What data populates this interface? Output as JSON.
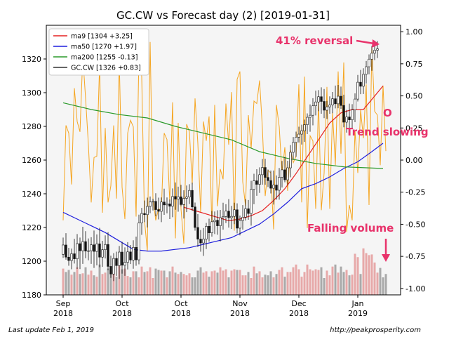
{
  "chart_data": {
    "type": "candlestick",
    "title": "GC.CW vs Forecast day (2)  [2019-01-31]",
    "xlabel": "",
    "ylabel": "",
    "ylim": [
      1180,
      1340
    ],
    "y_ticks": [
      1180,
      1200,
      1220,
      1240,
      1260,
      1280,
      1300,
      1320
    ],
    "y2lim": [
      -1.05,
      1.05
    ],
    "y2_ticks": [
      "1.00",
      "0.75",
      "0.50",
      "0.25",
      "0.00",
      "-0.25",
      "-0.50",
      "-0.75",
      "-1.00"
    ],
    "x_tick_labels": [
      {
        "month": "Sep",
        "year": "2018"
      },
      {
        "month": "Oct",
        "year": "2018"
      },
      {
        "month": "Oct",
        "year": "2018"
      },
      {
        "month": "Nov",
        "year": "2018"
      },
      {
        "month": "Dec",
        "year": "2018"
      },
      {
        "month": "Jan",
        "year": "2019"
      }
    ],
    "x_tick_bars": [
      0,
      21,
      42,
      63,
      84,
      105
    ],
    "grid": false,
    "legend_position": "top-left",
    "legend": [
      {
        "label": "ma9 [1304 +3.25]",
        "color": "#e62020"
      },
      {
        "label": "ma50 [1270 +1.97]",
        "color": "#1f1fdd"
      },
      {
        "label": "ma200 [1255 -0.13]",
        "color": "#2a9a2a"
      },
      {
        "label": "GC.CW [1326 +0.83]",
        "color": "#333333"
      }
    ],
    "series": [
      {
        "name": "ma9",
        "color": "#e62020",
        "points": [
          [
            43,
            1232
          ],
          [
            47,
            1230
          ],
          [
            51,
            1228
          ],
          [
            55,
            1226
          ],
          [
            59,
            1224
          ],
          [
            63,
            1225
          ],
          [
            67,
            1227
          ],
          [
            71,
            1230
          ],
          [
            75,
            1236
          ],
          [
            79,
            1243
          ],
          [
            83,
            1252
          ],
          [
            87,
            1262
          ],
          [
            91,
            1272
          ],
          [
            95,
            1282
          ],
          [
            99,
            1288
          ],
          [
            103,
            1290
          ],
          [
            107,
            1290
          ],
          [
            110,
            1296
          ],
          [
            112,
            1300
          ],
          [
            114,
            1304
          ]
        ]
      },
      {
        "name": "ma50",
        "color": "#1f1fdd",
        "points": [
          [
            0,
            1229
          ],
          [
            5,
            1225
          ],
          [
            10,
            1221
          ],
          [
            15,
            1217
          ],
          [
            20,
            1212
          ],
          [
            25,
            1207
          ],
          [
            30,
            1206
          ],
          [
            35,
            1206
          ],
          [
            40,
            1207
          ],
          [
            45,
            1208
          ],
          [
            50,
            1210
          ],
          [
            55,
            1212
          ],
          [
            60,
            1214
          ],
          [
            65,
            1218
          ],
          [
            70,
            1222
          ],
          [
            75,
            1228
          ],
          [
            80,
            1235
          ],
          [
            85,
            1243
          ],
          [
            90,
            1246
          ],
          [
            95,
            1250
          ],
          [
            100,
            1255
          ],
          [
            105,
            1259
          ],
          [
            110,
            1265
          ],
          [
            114,
            1270
          ]
        ]
      },
      {
        "name": "ma200",
        "color": "#2a9a2a",
        "points": [
          [
            0,
            1294
          ],
          [
            10,
            1290
          ],
          [
            20,
            1287
          ],
          [
            30,
            1285
          ],
          [
            40,
            1280
          ],
          [
            50,
            1276
          ],
          [
            60,
            1272
          ],
          [
            70,
            1265
          ],
          [
            80,
            1261
          ],
          [
            90,
            1258
          ],
          [
            100,
            1256
          ],
          [
            114,
            1255
          ]
        ]
      }
    ],
    "forecast": {
      "name": "Forecast",
      "color": "#f5a623",
      "values": [
        -0.47,
        0.27,
        0.21,
        -0.19,
        0.56,
        0.3,
        0.22,
        0.81,
        0.48,
        0.12,
        -0.33,
        0.02,
        0.03,
        0.75,
        -0.41,
        0.25,
        -0.33,
        -0.2,
        0.27,
        -0.3,
        0.78,
        -0.21,
        -0.46,
        0.21,
        0.31,
        0.26,
        -0.44,
        0.81,
        0.65,
        -0.47,
        -0.71,
        0.92,
        -0.3,
        -0.47,
        -0.38,
        -0.39,
        0.21,
        0.16,
        -0.33,
        0.45,
        -0.61,
        0.29,
        -0.38,
        -0.65,
        0.28,
        0.22,
        -0.19,
        0.48,
        0.13,
        -0.41,
        0.3,
        0.15,
        0.34,
        -0.53,
        0.43,
        -0.36,
        -0.07,
        -0.15,
        0.44,
        0.12,
        0.53,
        -0.55,
        0.63,
        0.69,
        -0.17,
        -0.36,
        0.35,
        0.09,
        0.46,
        0.44,
        0.62,
        0.25,
        -0.28,
        -0.08,
        -0.1,
        -0.54,
        0.43,
        0.26,
        -0.11,
        0.1,
        -0.24,
        0.08,
        -0.02,
        0.03,
        0.59,
        -0.33,
        0.65,
        -0.53,
        0.19,
        0.15,
        -0.38,
        0.46,
        -0.39,
        -0.1,
        0.57,
        -0.38,
        0.37,
        -0.04,
        0.69,
        0.05,
        0.76,
        -0.56,
        -0.35,
        -0.47,
        0.23,
        -0.1,
        0.39,
        0.17,
        0.59,
        -0.35,
        0.88,
        0.38,
        0.35,
        -0.04,
        0.58,
        0.07
      ]
    },
    "volume": {
      "up_color": "#e7a9a9",
      "down_color": "#a9a9a9",
      "values": [
        0.39,
        0.34,
        0.37,
        0.3,
        0.34,
        0.41,
        0.31,
        0.32,
        0.41,
        0.3,
        0.36,
        0.29,
        0.27,
        0.45,
        0.31,
        0.33,
        0.39,
        0.34,
        0.33,
        0.27,
        0.43,
        0.38,
        0.39,
        0.28,
        0.26,
        0.35,
        0.35,
        0.26,
        0.42,
        0.34,
        0.35,
        0.41,
        0.25,
        0.39,
        0.37,
        0.36,
        0.36,
        0.26,
        0.35,
        0.42,
        0.33,
        0.31,
        0.34,
        0.31,
        0.29,
        0.32,
        0.26,
        0.26,
        0.36,
        0.41,
        0.33,
        0.35,
        0.27,
        0.35,
        0.36,
        0.33,
        0.41,
        0.36,
        0.38,
        0.26,
        0.36,
        0.38,
        0.37,
        0.37,
        0.29,
        0.29,
        0.34,
        0.25,
        0.42,
        0.32,
        0.35,
        0.26,
        0.3,
        0.29,
        0.35,
        0.26,
        0.31,
        0.37,
        0.41,
        0.27,
        0.34,
        0.34,
        0.41,
        0.45,
        0.38,
        0.27,
        0.34,
        0.45,
        0.38,
        0.36,
        0.38,
        0.37,
        0.41,
        0.25,
        0.36,
        0.29,
        0.42,
        0.45,
        0.33,
        0.42,
        0.34,
        0.37,
        0.29,
        0.3,
        0.61,
        0.56,
        0.31,
        0.69,
        0.62,
        0.59,
        0.6,
        0.48,
        0.33,
        0.4,
        0.26,
        0.31
      ]
    },
    "candles": {
      "up_color": "#ffffff",
      "down_color": "#111111",
      "ohlc": [
        [
          1204,
          1214,
          1202,
          1209.6
        ],
        [
          1209.6,
          1216.6,
          1200.9,
          1202.4
        ],
        [
          1202.4,
          1207.9,
          1197.3,
          1200.4
        ],
        [
          1200.4,
          1207.5,
          1195.2,
          1204.4
        ],
        [
          1204.4,
          1213.3,
          1198.6,
          1201.4
        ],
        [
          1201.4,
          1216.1,
          1195.4,
          1210.4
        ],
        [
          1210.4,
          1214,
          1195.3,
          1206.2
        ],
        [
          1206.2,
          1220.4,
          1198.4,
          1211.6
        ],
        [
          1211.6,
          1217.8,
          1201.7,
          1206
        ],
        [
          1206,
          1213.5,
          1200.5,
          1206.2
        ],
        [
          1206.2,
          1214.2,
          1198.4,
          1209.7
        ],
        [
          1209.7,
          1218.2,
          1196,
          1205.8
        ],
        [
          1205.8,
          1215.9,
          1197.5,
          1210.3
        ],
        [
          1210.3,
          1219.8,
          1196.4,
          1202.4
        ],
        [
          1202.4,
          1212.1,
          1196.6,
          1206.8
        ],
        [
          1206.8,
          1215.3,
          1201.6,
          1209.9
        ],
        [
          1209.9,
          1217.2,
          1194.6,
          1196.9
        ],
        [
          1196.9,
          1203.3,
          1190.1,
          1192.4
        ],
        [
          1192.4,
          1204.8,
          1188.2,
          1201.6
        ],
        [
          1201.6,
          1205.6,
          1191.3,
          1197.4
        ],
        [
          1197.4,
          1209,
          1189.5,
          1205.4
        ],
        [
          1205.4,
          1211.5,
          1192.6,
          1197.6
        ],
        [
          1197.6,
          1208.2,
          1191.3,
          1199.3
        ],
        [
          1199.3,
          1211.3,
          1195.1,
          1205.5
        ],
        [
          1205.5,
          1209.6,
          1198.3,
          1200.7
        ],
        [
          1200.7,
          1212.4,
          1195.5,
          1208.2
        ],
        [
          1208.2,
          1214.6,
          1197.3,
          1200.8
        ],
        [
          1200.8,
          1227.6,
          1198.1,
          1222.7
        ],
        [
          1222.7,
          1231.6,
          1215.6,
          1228.3
        ],
        [
          1228.3,
          1236,
          1223.2,
          1227.6
        ],
        [
          1227.6,
          1237.7,
          1220,
          1232.5
        ],
        [
          1232.5,
          1238.4,
          1228.5,
          1235.1
        ],
        [
          1235.1,
          1237.1,
          1230.1,
          1235.5
        ],
        [
          1235.5,
          1240.3,
          1226.6,
          1230.6
        ],
        [
          1230.6,
          1237.7,
          1224.8,
          1229.6
        ],
        [
          1229.6,
          1237.8,
          1223.2,
          1235.1
        ],
        [
          1235.1,
          1243,
          1227.5,
          1233.4
        ],
        [
          1233.4,
          1237.8,
          1228.4,
          1234
        ],
        [
          1234,
          1236.6,
          1225,
          1232.6
        ],
        [
          1232.6,
          1243.2,
          1226.1,
          1238.4
        ],
        [
          1238.4,
          1246.7,
          1230.5,
          1236.8
        ],
        [
          1236.8,
          1244.2,
          1229.4,
          1238.2
        ],
        [
          1238.2,
          1245.3,
          1232.5,
          1233.6
        ],
        [
          1233.6,
          1242.1,
          1225.3,
          1237.3
        ],
        [
          1237.3,
          1244.9,
          1229.1,
          1238.1
        ],
        [
          1238.1,
          1245.7,
          1233.9,
          1242
        ],
        [
          1242,
          1246.6,
          1229.9,
          1232.2
        ],
        [
          1232.2,
          1234.8,
          1218.1,
          1220
        ],
        [
          1220,
          1227.9,
          1208.5,
          1213.1
        ],
        [
          1213.1,
          1218.5,
          1205.6,
          1210.8
        ],
        [
          1210.8,
          1219.7,
          1203.1,
          1213.1
        ],
        [
          1213.1,
          1222.7,
          1207.2,
          1220.7
        ],
        [
          1220.7,
          1225.2,
          1211.6,
          1216.8
        ],
        [
          1216.8,
          1229.8,
          1214.6,
          1223.4
        ],
        [
          1223.4,
          1229.5,
          1216.1,
          1224.3
        ],
        [
          1224.3,
          1230.2,
          1215.7,
          1221
        ],
        [
          1221,
          1230.4,
          1211.7,
          1225.8
        ],
        [
          1225.8,
          1234.7,
          1218.7,
          1226.5
        ],
        [
          1226.5,
          1233.8,
          1222.6,
          1229.7
        ],
        [
          1229.7,
          1236.8,
          1219.9,
          1225.8
        ],
        [
          1225.8,
          1232.8,
          1219.1,
          1226.6
        ],
        [
          1226.6,
          1234.7,
          1222,
          1230.5
        ],
        [
          1230.5,
          1234.3,
          1216.5,
          1219.6
        ],
        [
          1219.6,
          1227.1,
          1215.3,
          1224.1
        ],
        [
          1224.1,
          1233.3,
          1218.7,
          1226.1
        ],
        [
          1226.1,
          1236.8,
          1224.1,
          1231.1
        ],
        [
          1231.1,
          1236.3,
          1224.6,
          1228.3
        ],
        [
          1228.3,
          1247.7,
          1221.1,
          1242.6
        ],
        [
          1242.6,
          1251.9,
          1233.8,
          1247.7
        ],
        [
          1247.7,
          1254.6,
          1238.8,
          1245.6
        ],
        [
          1245.6,
          1255.7,
          1240.5,
          1251.3
        ],
        [
          1251.3,
          1260.7,
          1245.4,
          1255.6
        ],
        [
          1255.6,
          1260.8,
          1245.3,
          1249.7
        ],
        [
          1249.7,
          1254.4,
          1244,
          1247.8
        ],
        [
          1247.8,
          1253.8,
          1240.2,
          1243.3
        ],
        [
          1243.3,
          1253.8,
          1233.6,
          1245.2
        ],
        [
          1245.2,
          1250.9,
          1236.5,
          1242.1
        ],
        [
          1242.1,
          1255.3,
          1236.5,
          1249.8
        ],
        [
          1249.8,
          1259.5,
          1243.7,
          1254.2
        ],
        [
          1254.2,
          1261.8,
          1246.8,
          1248.3
        ],
        [
          1248.3,
          1259.6,
          1245.4,
          1255.4
        ],
        [
          1255.4,
          1268.9,
          1249.8,
          1264.6
        ],
        [
          1264.6,
          1273.7,
          1260.2,
          1270.5
        ],
        [
          1270.5,
          1276.9,
          1261.9,
          1273.6
        ],
        [
          1273.6,
          1279.8,
          1270.4,
          1275.4
        ],
        [
          1275.4,
          1281,
          1269.2,
          1277.4
        ],
        [
          1277.4,
          1284,
          1270.8,
          1281
        ],
        [
          1281,
          1287.7,
          1275.4,
          1285.4
        ],
        [
          1285.4,
          1293,
          1276.8,
          1286.6
        ],
        [
          1286.6,
          1296.7,
          1280.6,
          1292.2
        ],
        [
          1292.2,
          1301.2,
          1286.5,
          1294.5
        ],
        [
          1294.5,
          1301.5,
          1289,
          1297.6
        ],
        [
          1297.6,
          1303.2,
          1287.5,
          1294.8
        ],
        [
          1294.8,
          1302.2,
          1284.9,
          1289.6
        ],
        [
          1289.6,
          1295.1,
          1284.4,
          1291.6
        ],
        [
          1291.6,
          1297.8,
          1287.5,
          1292.7
        ],
        [
          1292.7,
          1300.4,
          1287.8,
          1296.4
        ],
        [
          1296.4,
          1304.2,
          1290.7,
          1293.4
        ],
        [
          1293.4,
          1304.6,
          1290.8,
          1297.9
        ],
        [
          1297.9,
          1303.6,
          1290.4,
          1292.4
        ],
        [
          1292.4,
          1298.8,
          1279.5,
          1282.5
        ],
        [
          1282.5,
          1289.8,
          1276.3,
          1285.6
        ],
        [
          1285.6,
          1293.5,
          1278.7,
          1283.9
        ],
        [
          1283.9,
          1293.2,
          1278.9,
          1289.8
        ],
        [
          1289.8,
          1299.6,
          1282.5,
          1296.2
        ],
        [
          1296.2,
          1310.5,
          1294.8,
          1306.2
        ],
        [
          1306.2,
          1313.5,
          1299.1,
          1303.8
        ],
        [
          1303.8,
          1314.5,
          1299.2,
          1310.9
        ],
        [
          1310.9,
          1318.8,
          1305.4,
          1315.4
        ],
        [
          1315.4,
          1322.7,
          1310.9,
          1319.9
        ],
        [
          1319.9,
          1327.7,
          1313,
          1323.4
        ],
        [
          1323.4,
          1330.9,
          1319.3,
          1325.2
        ],
        [
          1325.2,
          1330.6,
          1320.5,
          1326
        ]
      ]
    },
    "annotations": [
      {
        "text": "41% reversal",
        "color": "#e8336b"
      },
      {
        "text": "O",
        "color": "#e8336b"
      },
      {
        "text": "Trend slowing",
        "color": "#e8336b"
      },
      {
        "text": "Falling volume",
        "color": "#e8336b"
      }
    ]
  },
  "footer": {
    "left": "Last update Feb  1, 2019",
    "right": "http://peakprosperity.com"
  }
}
